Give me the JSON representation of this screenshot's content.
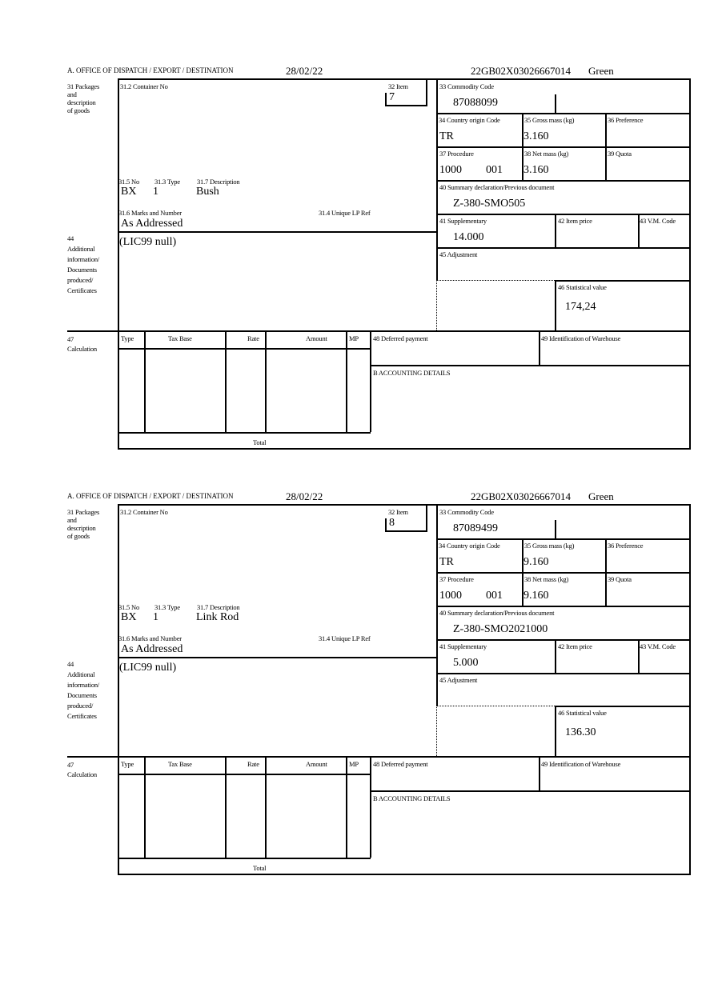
{
  "labels": {
    "office": "A.  OFFICE OF DISPATCH / EXPORT / DESTINATION",
    "box31": "31 Packages\nand\ndescription\nof goods",
    "container": "31.2 Container No",
    "item": "32 Item",
    "commodity": "33 Commodity Code",
    "origin": "34 Country origin Code",
    "gross": "35 Gross mass (kg)",
    "preference": "36 Preference",
    "procedure": "37 Procedure",
    "net": "38 Net mass (kg)",
    "quota": "39 Quota",
    "summary": "40 Summary declaration/Previous document",
    "supplementary": "41 Supplementary",
    "item_price": "42 Item price",
    "vm_code": "43 V.M. Code",
    "adjustment": "45 Adjustment",
    "statistical": "46 Statistical value",
    "no": "31.5 No",
    "type": "31.3 Type",
    "description": "31.7 Description",
    "marks": "31.6 Marks and Number",
    "unique_ref": "31.4 Unique LP Ref",
    "box44": "44\nAdditional\ninformation/\nDocuments\nproduced/\nCertificates",
    "box47": "47\nCalculation",
    "calc_headers": [
      "Type",
      "Tax Base",
      "Rate",
      "Amount",
      "MP"
    ],
    "deferred": "48 Deferred payment",
    "warehouse": "49 Identification of Warehouse",
    "accounting": "B ACCOUNTING DETAILS",
    "total": "Total"
  },
  "blocks": [
    {
      "date": "28/02/22",
      "reference": "22GB02X03026667014",
      "route": "Green",
      "item": "7",
      "commodity_code": "87088099",
      "origin": "TR",
      "gross_mass": "3.160",
      "procedure": "1000",
      "procedure_extra": "001",
      "net_mass": "3.160",
      "summary_doc": "Z-380-SMO505",
      "supplementary": "14.000",
      "statistical_value": "174,24",
      "packages_no": "BX",
      "packages_type": "1",
      "description": "Bush",
      "marks": "As Addressed",
      "additional_info": "(LIC99 null)"
    },
    {
      "date": "28/02/22",
      "reference": "22GB02X03026667014",
      "route": "Green",
      "item": "8",
      "commodity_code": "87089499",
      "origin": "TR",
      "gross_mass": "9.160",
      "procedure": "1000",
      "procedure_extra": "001",
      "net_mass": "9.160",
      "summary_doc": "Z-380-SMO2021000",
      "supplementary": "5.000",
      "statistical_value": "136.30",
      "packages_no": "BX",
      "packages_type": "1",
      "description": "Link Rod",
      "marks": "As Addressed",
      "additional_info": "(LIC99 null)"
    }
  ]
}
